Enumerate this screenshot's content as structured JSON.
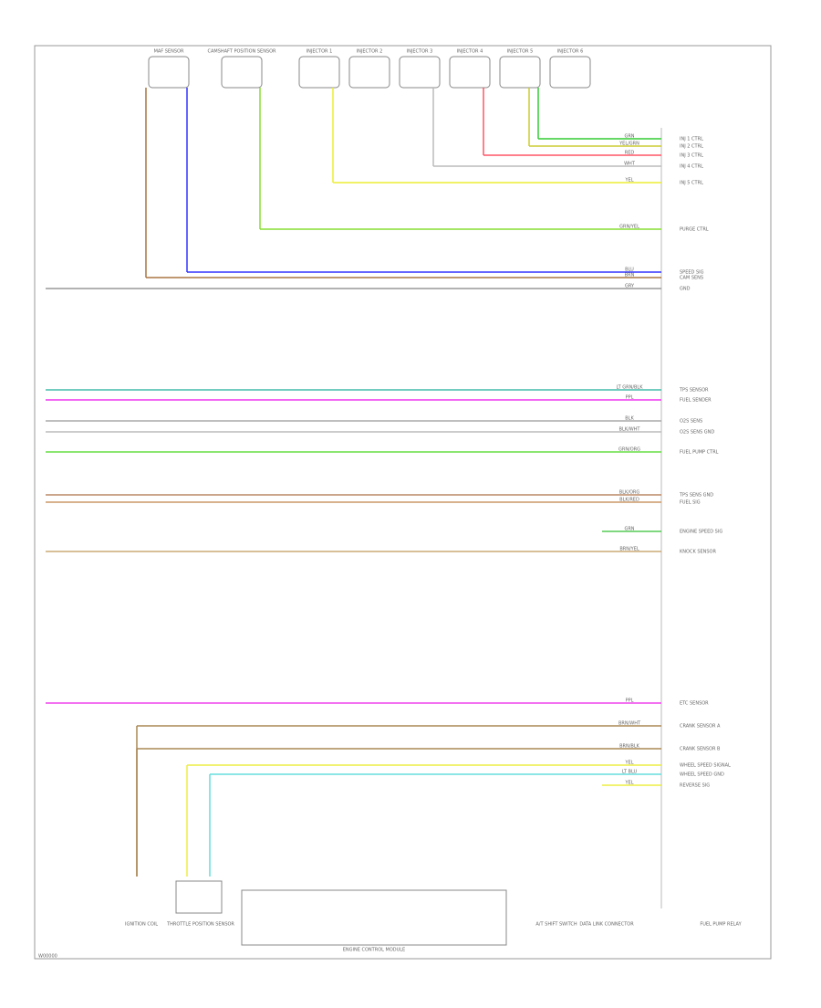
{
  "top_components": [
    "MAF SENSOR",
    "CAMSHAFT POSITION SENSOR",
    "INJECTOR 1",
    "INJECTOR 2",
    "INJECTOR 3",
    "INJECTOR 4",
    "INJECTOR 5",
    "INJECTOR 6"
  ],
  "wires": [
    {
      "code": "GRN",
      "label": "INJ 1 CTRL",
      "color": "#33cc33"
    },
    {
      "code": "YEL/GRN",
      "label": "INJ 2 CTRL",
      "color": "#cccc33"
    },
    {
      "code": "RED",
      "label": "INJ 3 CTRL",
      "color": "#ff5566"
    },
    {
      "code": "WHT",
      "label": "INJ 4 CTRL",
      "color": "#bbbbbb"
    },
    {
      "code": "YEL",
      "label": "INJ 5 CTRL",
      "color": "#eeee33"
    },
    {
      "code": "GRN/YEL",
      "label": "PURGE CTRL",
      "color": "#88dd33"
    },
    {
      "code": "BLU",
      "label": "SPEED SIG",
      "color": "#3333ff"
    },
    {
      "code": "BRN",
      "label": "CAM SENS",
      "color": "#aa7744"
    },
    {
      "code": "GRY",
      "label": "GND",
      "color": "#999999"
    },
    {
      "code": "LT GRN/BLK",
      "label": "TPS SENSOR",
      "color": "#44bbaa"
    },
    {
      "code": "PPL",
      "label": "FUEL SENDER",
      "color": "#ee33ee"
    },
    {
      "code": "BLK",
      "label": "O2S SENS",
      "color": "#aaaaaa"
    },
    {
      "code": "BLK/WHT",
      "label": "O2S SENS GND",
      "color": "#bbbbbb"
    },
    {
      "code": "GRN/ORG",
      "label": "FUEL PUMP CTRL",
      "color": "#66dd44"
    },
    {
      "code": "BLK/ORG",
      "label": "TPS SENS GND",
      "color": "#bb8866"
    },
    {
      "code": "BLK/RED",
      "label": "FUEL SIG",
      "color": "#cc9966"
    },
    {
      "code": "GRN",
      "label": "ENGINE SPEED SIG",
      "color": "#55cc55"
    },
    {
      "code": "BRN/YEL",
      "label": "KNOCK SENSOR",
      "color": "#ccaa77"
    },
    {
      "code": "PPL",
      "label": "ETC SENSOR",
      "color": "#ee44ee"
    },
    {
      "code": "BRN/WHT",
      "label": "CRANK SENSOR A",
      "color": "#aa8855"
    },
    {
      "code": "BRN/BLK",
      "label": "CRANK SENSOR B",
      "color": "#aa8855"
    },
    {
      "code": "YEL",
      "label": "WHEEL SPEED SIGNAL",
      "color": "#eeee44"
    },
    {
      "code": "LT BLU",
      "label": "WHEEL SPEED GND",
      "color": "#66dddd"
    },
    {
      "code": "YEL",
      "label": "REVERSE SIG",
      "color": "#eeee44"
    }
  ],
  "bottom_components": [
    "IGNITION COIL",
    "THROTTLE POSITION SENSOR",
    "ENGINE CONTROL MODULE",
    "A/T SHIFT SWITCH",
    "DATA LINK CONNECTOR",
    "FUEL PUMP RELAY"
  ],
  "footer": "W00000"
}
